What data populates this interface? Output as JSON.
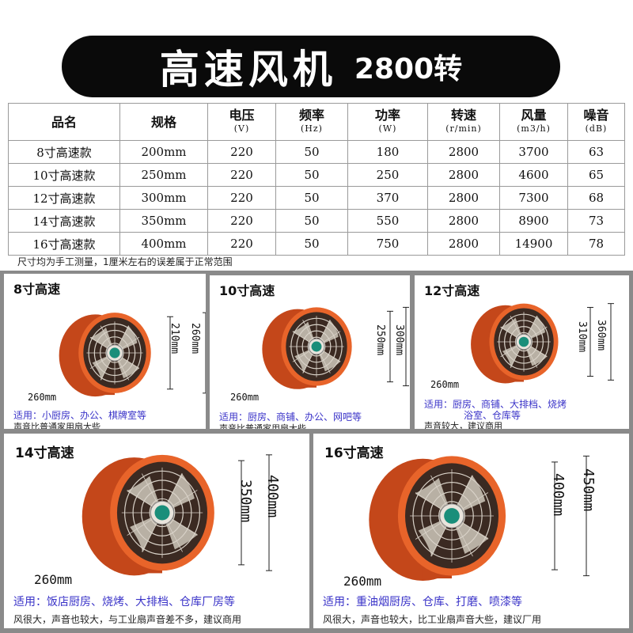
{
  "banner": {
    "title": "高速风机",
    "speed": "2800转"
  },
  "table": {
    "headers": [
      {
        "label": "品名",
        "unit": ""
      },
      {
        "label": "规格",
        "unit": ""
      },
      {
        "label": "电压",
        "unit": "(V)"
      },
      {
        "label": "频率",
        "unit": "(Hz)"
      },
      {
        "label": "功率",
        "unit": "(W)"
      },
      {
        "label": "转速",
        "unit": "(r/min)"
      },
      {
        "label": "风量",
        "unit": "(m3/h)"
      },
      {
        "label": "噪音",
        "unit": "(dB)"
      }
    ],
    "rows": [
      [
        "8寸高速款",
        "200mm",
        "220",
        "50",
        "180",
        "2800",
        "3700",
        "63"
      ],
      [
        "10寸高速款",
        "250mm",
        "220",
        "50",
        "250",
        "2800",
        "4600",
        "65"
      ],
      [
        "12寸高速款",
        "300mm",
        "220",
        "50",
        "370",
        "2800",
        "7300",
        "68"
      ],
      [
        "14寸高速款",
        "350mm",
        "220",
        "50",
        "550",
        "2800",
        "8900",
        "73"
      ],
      [
        "16寸高速款",
        "400mm",
        "220",
        "50",
        "750",
        "2800",
        "14900",
        "78"
      ]
    ],
    "note": "尺寸均为手工测量，1厘米左右的误差属于正常范围"
  },
  "cards": {
    "c8": {
      "title": "8寸高速",
      "dim_inner": "210mm",
      "dim_outer": "260mm",
      "dim_depth": "260mm",
      "usage": "适用：小厨房、办公、棋牌室等",
      "remark": "声音比普通家用扇大些"
    },
    "c10": {
      "title": "10寸高速",
      "dim_inner": "250mm",
      "dim_outer": "300mm",
      "dim_depth": "260mm",
      "usage": "适用：厨房、商铺、办公、网吧等",
      "remark": "声音比普通家用扇大些"
    },
    "c12": {
      "title": "12寸高速",
      "dim_inner": "310mm",
      "dim_outer": "360mm",
      "dim_depth": "260mm",
      "usage": "适用：厨房、商铺、大排档、烧烤",
      "usage2": "浴室、仓库等",
      "remark": "声音较大，建议商用"
    },
    "c14": {
      "title": "14寸高速",
      "dim_inner": "350mm",
      "dim_outer": "400mm",
      "dim_depth": "260mm",
      "usage": "适用：饭店厨房、烧烤、大排档、仓库厂房等",
      "remark": "风很大，声音也较大，与工业扇声音差不多，建议商用"
    },
    "c16": {
      "title": "16寸高速",
      "dim_inner": "400mm",
      "dim_outer": "450mm",
      "dim_depth": "260mm",
      "usage": "适用：重油烟厨房、仓库、打磨、喷漆等",
      "remark": "风很大，声音也较大，比工业扇声音大些，建议厂用"
    }
  },
  "colors": {
    "fan_orange": "#e8642a",
    "fan_dark": "#c4471a",
    "usage_text": "#3a33c8",
    "frame": "#8a8a8a"
  }
}
